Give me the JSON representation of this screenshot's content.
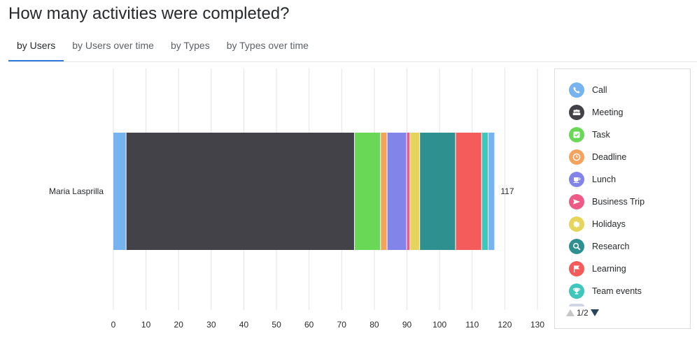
{
  "title": "How many activities were completed?",
  "tabs": [
    {
      "label": "by Users",
      "active": true
    },
    {
      "label": "by Users over time",
      "active": false
    },
    {
      "label": "by Types",
      "active": false
    },
    {
      "label": "by Types over time",
      "active": false
    }
  ],
  "chart_data": {
    "type": "bar",
    "orientation": "horizontal",
    "stacked": true,
    "categories": [
      "Maria Lasprilla"
    ],
    "series": [
      {
        "name": "Call",
        "color": "#76b3ef",
        "values": [
          4
        ]
      },
      {
        "name": "Meeting",
        "color": "#424248",
        "values": [
          70
        ]
      },
      {
        "name": "Task",
        "color": "#69d857",
        "values": [
          8
        ]
      },
      {
        "name": "Deadline",
        "color": "#f3a35c",
        "values": [
          2
        ]
      },
      {
        "name": "Lunch",
        "color": "#8384ea",
        "values": [
          6
        ]
      },
      {
        "name": "Business Trip",
        "color": "#ee5a86",
        "values": [
          1
        ]
      },
      {
        "name": "Holidays",
        "color": "#e5d55c",
        "values": [
          3
        ]
      },
      {
        "name": "Research",
        "color": "#2e9190",
        "values": [
          11
        ]
      },
      {
        "name": "Learning",
        "color": "#f45c5c",
        "values": [
          8
        ]
      },
      {
        "name": "Team events",
        "color": "#3fc7bc",
        "values": [
          2
        ]
      },
      {
        "name": "",
        "color": "#76b3ef",
        "values": [
          2
        ]
      }
    ],
    "totals": [
      "117"
    ],
    "xlim": [
      0,
      130
    ],
    "xticks": [
      "0",
      "10",
      "20",
      "30",
      "40",
      "50",
      "60",
      "70",
      "80",
      "90",
      "100",
      "110",
      "120",
      "130"
    ],
    "grid": true,
    "legend_position": "right"
  },
  "legend": {
    "items": [
      {
        "label": "Call",
        "color": "#76b3ef",
        "icon": "phone-icon"
      },
      {
        "label": "Meeting",
        "color": "#424248",
        "icon": "people-icon"
      },
      {
        "label": "Task",
        "color": "#69d857",
        "icon": "checkbox-icon"
      },
      {
        "label": "Deadline",
        "color": "#f3a35c",
        "icon": "clock-icon"
      },
      {
        "label": "Lunch",
        "color": "#8384ea",
        "icon": "cup-icon"
      },
      {
        "label": "Business Trip",
        "color": "#ee5a86",
        "icon": "plane-icon"
      },
      {
        "label": "Holidays",
        "color": "#e5d55c",
        "icon": "sun-icon"
      },
      {
        "label": "Research",
        "color": "#2e9190",
        "icon": "magnifier-icon"
      },
      {
        "label": "Learning",
        "color": "#f45c5c",
        "icon": "flag-icon"
      },
      {
        "label": "Team events",
        "color": "#3fc7bc",
        "icon": "trophy-icon"
      }
    ],
    "page": "1/2"
  }
}
